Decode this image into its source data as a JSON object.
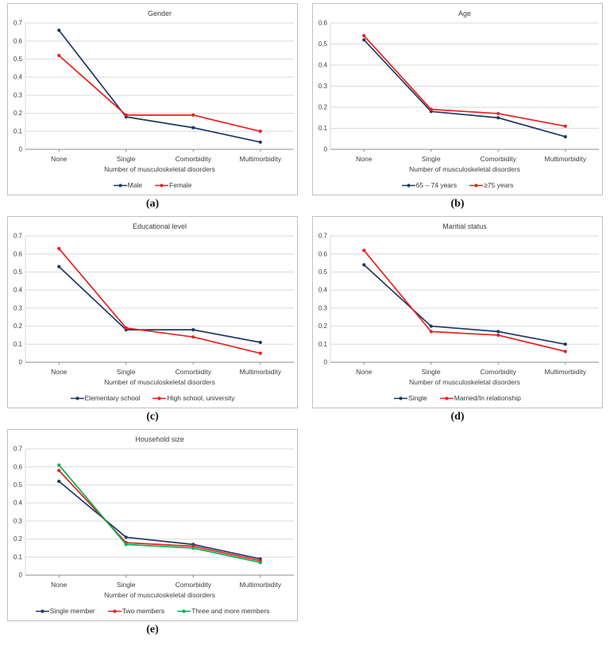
{
  "colors": {
    "navy": "#1f3864",
    "red": "#e8211d",
    "green": "#00b050",
    "gridline": "#d9d9d9",
    "axis": "#8c8c8c",
    "panel_border": "#c0c0c0",
    "label_text": "#3d3d3d"
  },
  "chart_data": [
    {
      "id": "a",
      "type": "line",
      "title": "Gender",
      "caption": "(a)",
      "xlabel": "Number of musculoskeletal disorders",
      "ylabel": "",
      "categories": [
        "None",
        "Single",
        "Comorbidity",
        "Multimorbidity"
      ],
      "ylim": [
        0,
        0.7
      ],
      "ytick_step": 0.1,
      "grid": true,
      "legend_position": "bottom",
      "series": [
        {
          "name": "Male",
          "color": "#1f3864",
          "values": [
            0.66,
            0.18,
            0.12,
            0.04
          ]
        },
        {
          "name": "Female",
          "color": "#e8211d",
          "values": [
            0.52,
            0.19,
            0.19,
            0.1
          ]
        }
      ]
    },
    {
      "id": "b",
      "type": "line",
      "title": "Age",
      "caption": "(b)",
      "xlabel": "Number of musculoskeletal disorders",
      "ylabel": "",
      "categories": [
        "None",
        "Single",
        "Comorbidity",
        "Multimorbidity"
      ],
      "ylim": [
        0,
        0.6
      ],
      "ytick_step": 0.1,
      "grid": true,
      "legend_position": "bottom",
      "series": [
        {
          "name": "65 – 74 years",
          "color": "#1f3864",
          "values": [
            0.52,
            0.18,
            0.15,
            0.06
          ]
        },
        {
          "name": "≥75 years",
          "color": "#e8211d",
          "values": [
            0.54,
            0.19,
            0.17,
            0.11
          ]
        }
      ]
    },
    {
      "id": "c",
      "type": "line",
      "title": "Educational level",
      "caption": "(c)",
      "xlabel": "Number of musculoskeletal disorders",
      "ylabel": "",
      "categories": [
        "None",
        "Single",
        "Comorbidity",
        "Multimorbidity"
      ],
      "ylim": [
        0,
        0.7
      ],
      "ytick_step": 0.1,
      "grid": true,
      "legend_position": "bottom",
      "series": [
        {
          "name": "Elementary school",
          "color": "#1f3864",
          "values": [
            0.53,
            0.18,
            0.18,
            0.11
          ]
        },
        {
          "name": "High school, university",
          "color": "#e8211d",
          "values": [
            0.63,
            0.19,
            0.14,
            0.05
          ]
        }
      ]
    },
    {
      "id": "d",
      "type": "line",
      "title": "Maritial status",
      "caption": "(d)",
      "xlabel": "Number of musculoskeletal disorders",
      "ylabel": "",
      "categories": [
        "None",
        "Single",
        "Comorbidity",
        "Multimorbidity"
      ],
      "ylim": [
        0,
        0.7
      ],
      "ytick_step": 0.1,
      "grid": true,
      "legend_position": "bottom",
      "series": [
        {
          "name": "Single",
          "color": "#1f3864",
          "values": [
            0.54,
            0.2,
            0.17,
            0.1
          ]
        },
        {
          "name": "Married/In relationship",
          "color": "#e8211d",
          "values": [
            0.62,
            0.17,
            0.15,
            0.06
          ]
        }
      ]
    },
    {
      "id": "e",
      "type": "line",
      "title": "Household size",
      "caption": "(e)",
      "xlabel": "Number of musculoskeletal disorders",
      "ylabel": "",
      "categories": [
        "None",
        "Single",
        "Comorbidity",
        "Multimorbidity"
      ],
      "ylim": [
        0,
        0.7
      ],
      "ytick_step": 0.1,
      "grid": true,
      "legend_position": "bottom",
      "series": [
        {
          "name": "Single member",
          "color": "#1f3864",
          "values": [
            0.52,
            0.21,
            0.17,
            0.09
          ]
        },
        {
          "name": "Two members",
          "color": "#e8211d",
          "values": [
            0.58,
            0.18,
            0.16,
            0.08
          ]
        },
        {
          "name": "Three and more members",
          "color": "#00b050",
          "values": [
            0.61,
            0.17,
            0.15,
            0.07
          ]
        }
      ]
    }
  ]
}
